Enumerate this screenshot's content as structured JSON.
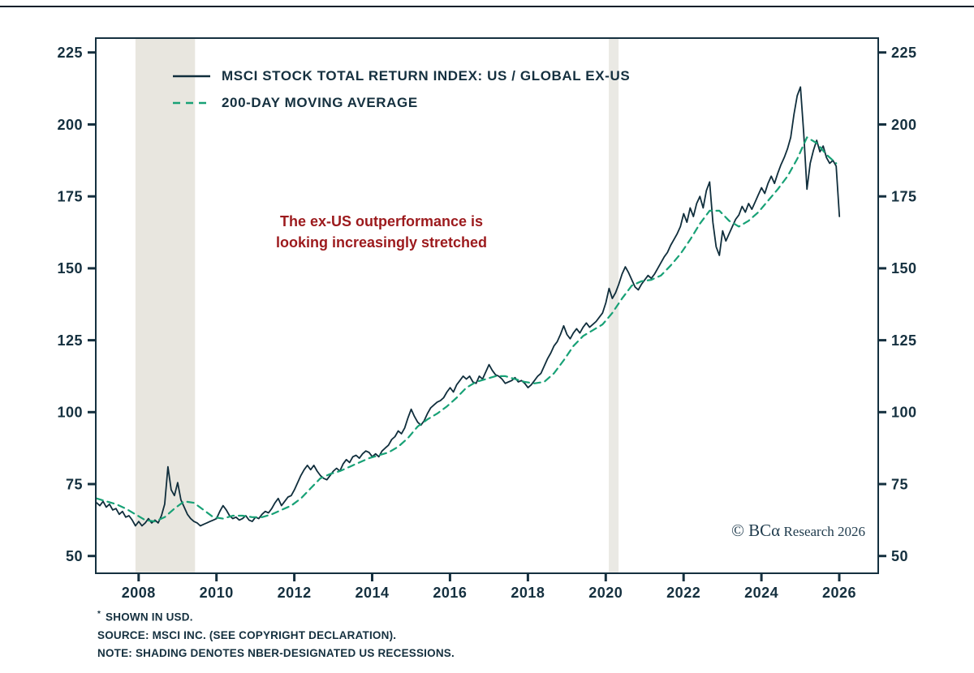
{
  "legend": [
    {
      "label": "MSCI STOCK TOTAL RETURN INDEX: US / GLOBAL EX-US",
      "style": "solid"
    },
    {
      "label": "200-DAY MOVING AVERAGE",
      "style": "dashed"
    }
  ],
  "annotation": {
    "line1": "The ex-US outperformance is",
    "line2": "looking increasingly stretched",
    "color": "#9c1a1d"
  },
  "copyright": {
    "brand": "© BCα",
    "rest": " Research 2026"
  },
  "footnotes": [
    {
      "sup": "*",
      "text": " SHOWN IN USD."
    },
    {
      "sup": "",
      "text": "SOURCE: MSCI INC. (SEE COPYRIGHT DECLARATION)."
    },
    {
      "sup": "",
      "text": "NOTE: SHADING DENOTES NBER-DESIGNATED US RECESSIONS."
    }
  ],
  "chart_data": {
    "type": "line",
    "title": "",
    "xlabel": "",
    "ylabel": "",
    "grid": false,
    "legend_position": "top-left",
    "xlim": [
      2006.9,
      2027.0
    ],
    "ylim": [
      44,
      230
    ],
    "y_ticks": [
      50,
      75,
      100,
      125,
      150,
      175,
      200,
      225
    ],
    "x_ticks": [
      2008,
      2010,
      2012,
      2014,
      2016,
      2018,
      2020,
      2022,
      2024,
      2026
    ],
    "frame_color": "#15303f",
    "recession_bands": [
      {
        "from": 2007.92,
        "to": 2009.45,
        "color": "#e8e6df"
      },
      {
        "from": 2020.08,
        "to": 2020.33,
        "color": "#eae9e4"
      }
    ],
    "series": [
      {
        "name": "MSCI STOCK TOTAL RETURN INDEX: US / GLOBAL EX-US",
        "color": "#102e3c",
        "style": "solid",
        "x_start": 2006.92,
        "x_step": 0.08333,
        "values": [
          68.5,
          67.5,
          69,
          67,
          68,
          66,
          66.5,
          64.5,
          65.5,
          63.5,
          64,
          62.5,
          60.5,
          62,
          60.5,
          61.5,
          63,
          61.5,
          62.5,
          61.5,
          64,
          68,
          81,
          73,
          71,
          75.5,
          69.5,
          67,
          64.5,
          63,
          62,
          61.5,
          60.5,
          61,
          61.5,
          62,
          62.5,
          63,
          65.5,
          67.5,
          66,
          64,
          63,
          63.5,
          62.5,
          63,
          64,
          62.5,
          62,
          63.5,
          63,
          64.5,
          65.5,
          65,
          66.5,
          68.5,
          70,
          67.5,
          69,
          70.5,
          71,
          73,
          75.5,
          78,
          80,
          81.5,
          80,
          81.5,
          79.5,
          78,
          77,
          76.5,
          78,
          79.5,
          80.5,
          79.5,
          82,
          83.5,
          82.5,
          84.5,
          85,
          84,
          85.5,
          86.5,
          86,
          84.5,
          85.5,
          84.5,
          86.5,
          87.5,
          88.5,
          90.5,
          91.5,
          93.5,
          92.5,
          94.5,
          98,
          101,
          98.5,
          96.5,
          95.5,
          97,
          99.5,
          101.5,
          102.5,
          103.5,
          104,
          105,
          107,
          108.5,
          107,
          109.5,
          111,
          112.5,
          111.5,
          112.5,
          110.5,
          110,
          112.5,
          111.5,
          114,
          116.5,
          114.5,
          113,
          112.5,
          111.5,
          110,
          110.5,
          111,
          112,
          110.5,
          111,
          110,
          108.5,
          109.5,
          111,
          112.5,
          113.5,
          116,
          118.5,
          120.5,
          123,
          124.5,
          127,
          130,
          127,
          125.5,
          127.5,
          129,
          127.5,
          129.5,
          131,
          129.5,
          130.5,
          131.5,
          133,
          134.5,
          138,
          143,
          139.5,
          141.5,
          144.5,
          148,
          150.5,
          148.5,
          146,
          143.5,
          142.5,
          144.5,
          146,
          147.5,
          146.5,
          148,
          150,
          152,
          154,
          155.5,
          158,
          160,
          162,
          164.5,
          169,
          166,
          171,
          168,
          172.5,
          175,
          171,
          177,
          180,
          166,
          157.5,
          154.5,
          163,
          159.5,
          162,
          164.5,
          167,
          168.5,
          171.5,
          169.5,
          172.5,
          170.5,
          173,
          175.5,
          178,
          176,
          179.5,
          182,
          179.5,
          183,
          186,
          188.5,
          191.5,
          195.5,
          203.5,
          210,
          213,
          197,
          177.5,
          186.5,
          191,
          194.5,
          190.5,
          192.5,
          188.5,
          186.5,
          187.5,
          185.5,
          168
        ]
      },
      {
        "name": "200-DAY MOVING AVERAGE",
        "color": "#18a176",
        "style": "dashed",
        "x_start": 2006.92,
        "x_step": 0.25,
        "values": [
          70,
          69,
          68,
          66.5,
          64.5,
          62.5,
          62,
          63.5,
          66.5,
          69,
          68.5,
          66,
          63.5,
          63,
          64,
          64,
          63.5,
          63.5,
          64.5,
          66,
          67.5,
          70,
          73.5,
          77,
          78.5,
          79.5,
          81,
          82.5,
          84,
          85,
          86,
          88,
          91,
          95,
          97.5,
          99.5,
          102,
          105,
          108.5,
          110.5,
          111.5,
          112.5,
          112.5,
          111.5,
          110.5,
          110,
          110.5,
          113.5,
          118,
          123,
          126.5,
          128.5,
          130.5,
          134.5,
          139.5,
          144,
          145.5,
          146,
          147.5,
          151,
          155,
          160,
          165.5,
          170,
          170,
          166.5,
          164.5,
          166.5,
          169.5,
          173.5,
          177.5,
          182,
          188,
          195.5,
          193.5,
          189.5,
          186.5
        ]
      }
    ]
  }
}
